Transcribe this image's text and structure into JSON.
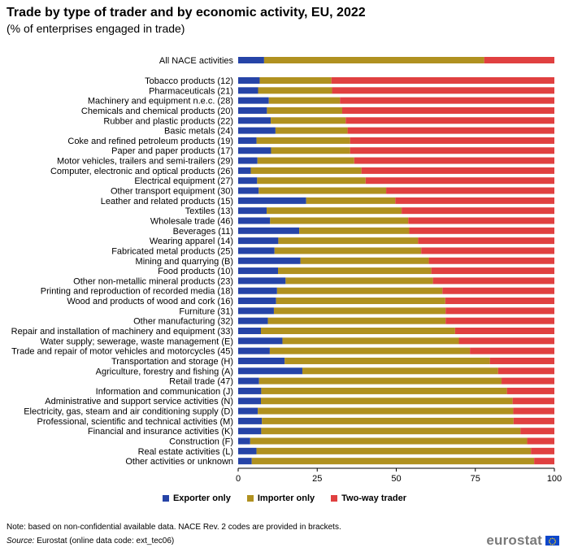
{
  "title": "Trade by type of trader and by economic activity, EU, 2022",
  "subtitle": "(% of enterprises engaged in trade)",
  "chart_data": {
    "type": "bar",
    "orientation": "horizontal",
    "stacked": true,
    "title": "Trade by type of trader and by economic activity, EU, 2022",
    "subtitle": "(% of enterprises engaged in trade)",
    "xlim": [
      0,
      100
    ],
    "x_ticks": [
      "0",
      "25",
      "50",
      "75",
      "100"
    ],
    "grid": false,
    "legend_position": "bottom",
    "categories": [
      "All NACE activities",
      "Tobacco products (12)",
      "Pharmaceuticals (21)",
      "Machinery and equipment n.e.c. (28)",
      "Chemicals and chemical products (20)",
      "Rubber and plastic products (22)",
      "Basic metals (24)",
      "Coke and refined petroleum products (19)",
      "Paper and paper products (17)",
      "Motor vehicles, trailers and semi-trailers (29)",
      "Computer, electronic and optical products (26)",
      "Electrical equipment (27)",
      "Other transport equipment (30)",
      "Leather and related products (15)",
      "Textiles (13)",
      "Wholesale trade (46)",
      "Beverages (11)",
      "Wearing apparel (14)",
      "Fabricated metal products (25)",
      "Mining and quarrying (B)",
      "Food products (10)",
      "Other non-metallic mineral products (23)",
      "Printing and reproduction of recorded media (18)",
      "Wood and products of wood and cork (16)",
      "Furniture (31)",
      "Other manufacturing (32)",
      "Repair and installation of machinery and equipment (33)",
      "Water supply; sewerage, waste management (E)",
      "Trade and repair of motor vehicles and motorcycles (45)",
      "Transportation and storage (H)",
      "Agriculture, forestry and fishing (A)",
      "Retail trade (47)",
      "Information and communication (J)",
      "Administrative and support service activities (N)",
      "Electricity, gas, steam and air conditioning supply (D)",
      "Professional, scientific and technical activities (M)",
      "Financial and insurance activities (K)",
      "Construction (F)",
      "Real estate activities (L)",
      "Other activities or unknown"
    ],
    "series": [
      {
        "name": "Exporter only",
        "color": "#2644A7",
        "values": [
          8.2,
          6.8,
          6.3,
          9.7,
          9.1,
          10.3,
          11.8,
          5.8,
          10.4,
          6.1,
          4.0,
          6.0,
          6.5,
          21.5,
          9.0,
          10.1,
          19.3,
          12.7,
          11.5,
          19.7,
          12.6,
          15.0,
          12.3,
          12.0,
          11.3,
          9.4,
          7.2,
          14.0,
          10.0,
          14.7,
          20.3,
          6.6,
          7.3,
          7.2,
          6.2,
          7.5,
          7.3,
          3.8,
          5.8,
          4.3
        ]
      },
      {
        "name": "Importer only",
        "color": "#B09120",
        "values": [
          69.6,
          22.7,
          23.4,
          22.5,
          23.8,
          23.7,
          22.8,
          29.6,
          25.0,
          30.6,
          35.0,
          34.3,
          40.3,
          28.2,
          42.7,
          43.7,
          34.8,
          44.2,
          46.4,
          40.6,
          48.5,
          46.6,
          52.3,
          53.5,
          54.3,
          56.2,
          61.4,
          55.8,
          63.3,
          64.9,
          61.9,
          76.7,
          77.7,
          79.6,
          80.8,
          79.6,
          82.0,
          87.6,
          86.8,
          89.3
        ]
      },
      {
        "name": "Two-way trader",
        "color": "#E04040",
        "values": [
          22.2,
          70.5,
          70.3,
          67.8,
          67.1,
          66.0,
          65.4,
          64.6,
          64.6,
          63.3,
          61.0,
          59.7,
          53.2,
          50.3,
          48.3,
          46.2,
          45.9,
          43.1,
          42.1,
          39.7,
          38.9,
          38.4,
          35.4,
          34.5,
          34.4,
          34.4,
          31.4,
          30.2,
          26.7,
          20.4,
          17.8,
          16.7,
          15.0,
          13.2,
          13.0,
          12.9,
          10.7,
          8.6,
          7.4,
          6.4
        ]
      }
    ]
  },
  "legend": {
    "items": [
      {
        "label": "Exporter only",
        "color": "#2644A7"
      },
      {
        "label": "Importer only",
        "color": "#B09120"
      },
      {
        "label": "Two-way trader",
        "color": "#E04040"
      }
    ]
  },
  "footer": {
    "note": "Note: based on non-confidential available data. NACE Rev. 2 codes are provided in brackets.",
    "source_label": "Source:",
    "source_text": " Eurostat (online data code: ext_tec06)",
    "logo_text": "eurostat"
  }
}
